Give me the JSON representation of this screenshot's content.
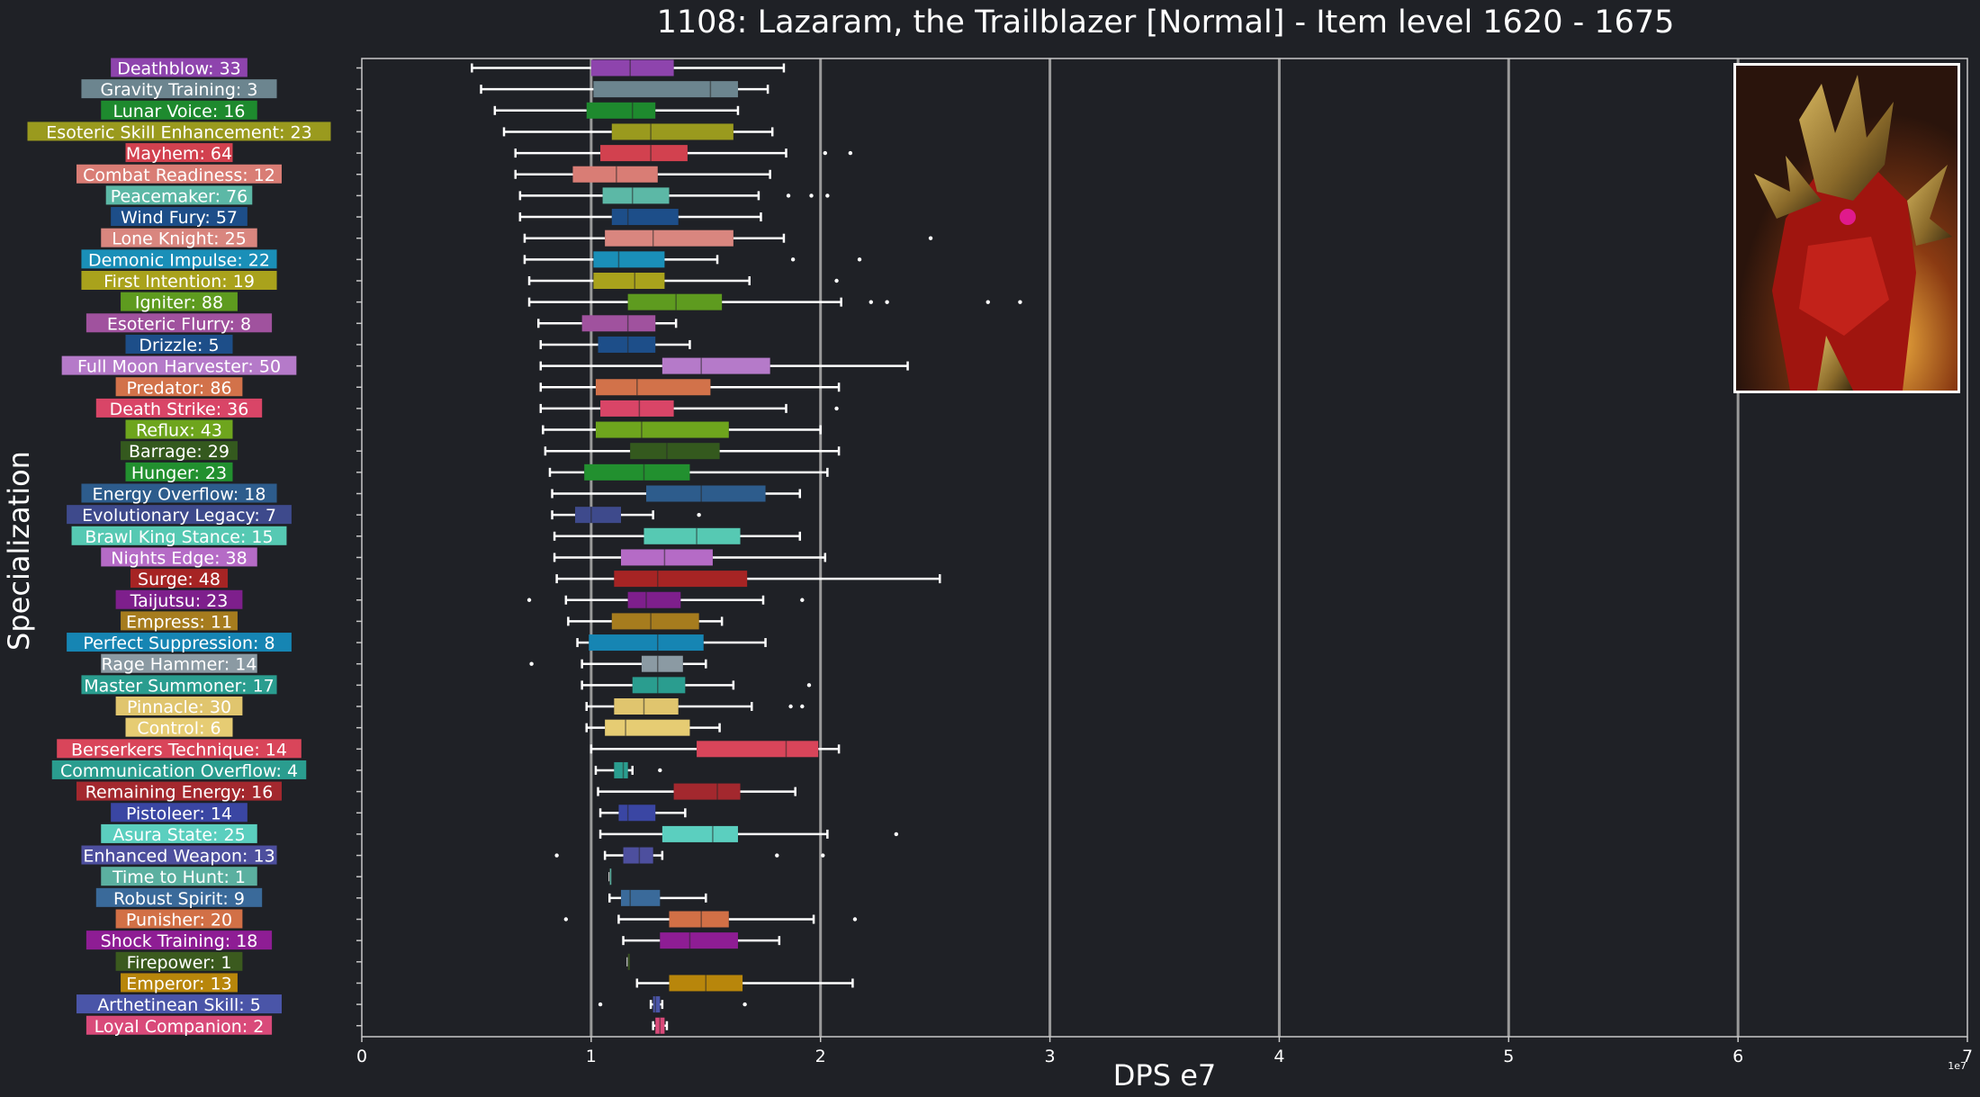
{
  "chart_data": {
    "type": "boxplot",
    "orientation": "horizontal",
    "title": "1108: Lazaram, the Trailblazer [Normal] - Item level 1620 - 1675",
    "xlabel": "DPS e7",
    "ylabel": "Specialization",
    "x_exponent_label": "1e7",
    "xlim": [
      0,
      7
    ],
    "xticks": [
      0,
      1,
      2,
      3,
      4,
      5,
      6,
      7
    ],
    "grid": "vertical major gridlines",
    "series": [
      {
        "label": "Deathblow: 33",
        "color": "#8e44ad",
        "stats": [
          0.48,
          1.0,
          1.17,
          1.36,
          1.84
        ],
        "outliers": []
      },
      {
        "label": "Gravity Training: 3",
        "color": "#6c858f",
        "stats": [
          0.52,
          1.01,
          1.52,
          1.64,
          1.77
        ],
        "outliers": []
      },
      {
        "label": "Lunar Voice: 16",
        "color": "#1e8a2e",
        "stats": [
          0.58,
          0.98,
          1.18,
          1.28,
          1.64
        ],
        "outliers": []
      },
      {
        "label": "Esoteric Skill Enhancement: 23",
        "color": "#9a9a1e",
        "stats": [
          0.62,
          1.09,
          1.26,
          1.62,
          1.79
        ],
        "outliers": []
      },
      {
        "label": "Mayhem: 64",
        "color": "#d2414f",
        "stats": [
          0.67,
          1.04,
          1.26,
          1.42,
          1.85
        ],
        "outliers": [
          2.02,
          2.13
        ]
      },
      {
        "label": "Combat Readiness: 12",
        "color": "#d97d75",
        "stats": [
          0.67,
          0.92,
          1.11,
          1.29,
          1.78
        ],
        "outliers": []
      },
      {
        "label": "Peacemaker: 76",
        "color": "#5cb8a6",
        "stats": [
          0.69,
          1.05,
          1.18,
          1.34,
          1.73
        ],
        "outliers": [
          1.86,
          1.96,
          2.03
        ]
      },
      {
        "label": "Wind Fury: 57",
        "color": "#1d4e89",
        "stats": [
          0.69,
          1.09,
          1.16,
          1.38,
          1.74
        ],
        "outliers": []
      },
      {
        "label": "Lone Knight: 25",
        "color": "#d9867f",
        "stats": [
          0.71,
          1.06,
          1.27,
          1.62,
          1.84
        ],
        "outliers": [
          2.48
        ]
      },
      {
        "label": "Demonic Impulse: 22",
        "color": "#1a8fb8",
        "stats": [
          0.71,
          1.01,
          1.12,
          1.32,
          1.55
        ],
        "outliers": [
          1.88,
          2.17
        ]
      },
      {
        "label": "First Intention: 19",
        "color": "#a9a21c",
        "stats": [
          0.73,
          1.01,
          1.19,
          1.32,
          1.69
        ],
        "outliers": [
          2.07
        ]
      },
      {
        "label": "Igniter: 88",
        "color": "#5e9b1f",
        "stats": [
          0.73,
          1.16,
          1.37,
          1.57,
          2.09
        ],
        "outliers": [
          2.22,
          2.29,
          2.73,
          2.87
        ]
      },
      {
        "label": "Esoteric Flurry: 8",
        "color": "#a0529e",
        "stats": [
          0.77,
          0.96,
          1.16,
          1.28,
          1.37
        ],
        "outliers": []
      },
      {
        "label": "Drizzle: 5",
        "color": "#1d4e89",
        "stats": [
          0.78,
          1.03,
          1.16,
          1.28,
          1.43
        ],
        "outliers": []
      },
      {
        "label": "Full Moon Harvester: 50",
        "color": "#b57ac9",
        "stats": [
          0.78,
          1.31,
          1.48,
          1.78,
          2.38
        ],
        "outliers": []
      },
      {
        "label": "Predator: 86",
        "color": "#d2724a",
        "stats": [
          0.78,
          1.02,
          1.2,
          1.52,
          2.08
        ],
        "outliers": []
      },
      {
        "label": "Death Strike: 36",
        "color": "#d94567",
        "stats": [
          0.78,
          1.04,
          1.21,
          1.36,
          1.85
        ],
        "outliers": [
          2.07
        ]
      },
      {
        "label": "Reflux: 43",
        "color": "#6ea51d",
        "stats": [
          0.79,
          1.02,
          1.22,
          1.6,
          2.0
        ],
        "outliers": []
      },
      {
        "label": "Barrage: 29",
        "color": "#34591e",
        "stats": [
          0.8,
          1.17,
          1.33,
          1.56,
          2.08
        ],
        "outliers": []
      },
      {
        "label": "Hunger: 23",
        "color": "#22902f",
        "stats": [
          0.82,
          0.97,
          1.23,
          1.43,
          2.03
        ],
        "outliers": []
      },
      {
        "label": "Energy Overflow: 18",
        "color": "#2d5c8c",
        "stats": [
          0.83,
          1.24,
          1.48,
          1.76,
          1.91
        ],
        "outliers": []
      },
      {
        "label": "Evolutionary Legacy: 7",
        "color": "#3e4a8c",
        "stats": [
          0.83,
          0.93,
          1.0,
          1.13,
          1.27
        ],
        "outliers": [
          1.47
        ]
      },
      {
        "label": "Brawl King Stance: 15",
        "color": "#56c9b3",
        "stats": [
          0.84,
          1.23,
          1.46,
          1.65,
          1.91
        ],
        "outliers": []
      },
      {
        "label": "Nights Edge: 38",
        "color": "#b56bc6",
        "stats": [
          0.84,
          1.13,
          1.32,
          1.53,
          2.02
        ],
        "outliers": []
      },
      {
        "label": "Surge: 48",
        "color": "#a62424",
        "stats": [
          0.85,
          1.1,
          1.29,
          1.68,
          2.52
        ],
        "outliers": []
      },
      {
        "label": "Taijutsu: 23",
        "color": "#7e1f8c",
        "stats": [
          0.89,
          1.16,
          1.24,
          1.39,
          1.75
        ],
        "outliers": [
          0.73,
          1.92
        ]
      },
      {
        "label": "Empress: 11",
        "color": "#a67c1e",
        "stats": [
          0.9,
          1.09,
          1.26,
          1.47,
          1.57
        ],
        "outliers": []
      },
      {
        "label": "Perfect Suppression: 8",
        "color": "#1685b3",
        "stats": [
          0.94,
          0.99,
          1.29,
          1.49,
          1.76
        ],
        "outliers": []
      },
      {
        "label": "Rage Hammer: 14",
        "color": "#8b9aa3",
        "stats": [
          0.96,
          1.22,
          1.29,
          1.4,
          1.5
        ],
        "outliers": [
          0.74
        ]
      },
      {
        "label": "Master Summoner: 17",
        "color": "#2a9d8f",
        "stats": [
          0.96,
          1.18,
          1.29,
          1.41,
          1.62
        ],
        "outliers": [
          1.95
        ]
      },
      {
        "label": "Pinnacle: 30",
        "color": "#e0c56e",
        "stats": [
          0.98,
          1.1,
          1.23,
          1.38,
          1.7
        ],
        "outliers": [
          1.87,
          1.92
        ]
      },
      {
        "label": "Control: 6",
        "color": "#e6cc73",
        "stats": [
          0.98,
          1.06,
          1.15,
          1.43,
          1.56
        ],
        "outliers": []
      },
      {
        "label": "Berserkers Technique: 14",
        "color": "#d9455a",
        "stats": [
          1.0,
          1.46,
          1.85,
          1.99,
          2.08
        ],
        "outliers": []
      },
      {
        "label": "Communication Overflow: 4",
        "color": "#2a9d8f",
        "stats": [
          1.02,
          1.1,
          1.14,
          1.16,
          1.18
        ],
        "outliers": [
          1.3
        ]
      },
      {
        "label": "Remaining Energy: 16",
        "color": "#a3282e",
        "stats": [
          1.03,
          1.36,
          1.55,
          1.65,
          1.89
        ],
        "outliers": []
      },
      {
        "label": "Pistoleer: 14",
        "color": "#3a46a3",
        "stats": [
          1.04,
          1.12,
          1.16,
          1.28,
          1.41
        ],
        "outliers": []
      },
      {
        "label": "Asura State: 25",
        "color": "#5bcfbf",
        "stats": [
          1.04,
          1.31,
          1.53,
          1.64,
          2.03
        ],
        "outliers": [
          2.33
        ]
      },
      {
        "label": "Enhanced Weapon: 13",
        "color": "#4d4f9e",
        "stats": [
          1.06,
          1.14,
          1.21,
          1.27,
          1.31
        ],
        "outliers": [
          0.85,
          1.81,
          2.01
        ]
      },
      {
        "label": "Time to Hunt: 1",
        "color": "#5bb0a0",
        "stats": [
          1.08,
          1.08,
          1.08,
          1.08,
          1.08
        ],
        "outliers": []
      },
      {
        "label": "Robust Spirit: 9",
        "color": "#3a6a9a",
        "stats": [
          1.08,
          1.13,
          1.17,
          1.3,
          1.5
        ],
        "outliers": []
      },
      {
        "label": "Punisher: 20",
        "color": "#d27046",
        "stats": [
          1.12,
          1.34,
          1.48,
          1.6,
          1.97
        ],
        "outliers": [
          0.89,
          2.15
        ]
      },
      {
        "label": "Shock Training: 18",
        "color": "#8e1d94",
        "stats": [
          1.14,
          1.3,
          1.43,
          1.64,
          1.82
        ],
        "outliers": []
      },
      {
        "label": "Firepower: 1",
        "color": "#3b5a1e",
        "stats": [
          1.16,
          1.16,
          1.16,
          1.16,
          1.16
        ],
        "outliers": []
      },
      {
        "label": "Emperor: 13",
        "color": "#b8860b",
        "stats": [
          1.2,
          1.34,
          1.5,
          1.66,
          2.14
        ],
        "outliers": []
      },
      {
        "label": "Arthetinean Skill: 5",
        "color": "#4a55a8",
        "stats": [
          1.26,
          1.27,
          1.28,
          1.3,
          1.31
        ],
        "outliers": [
          1.04,
          1.67
        ]
      },
      {
        "label": "Loyal Companion: 2",
        "color": "#d94a7a",
        "stats": [
          1.27,
          1.28,
          1.3,
          1.32,
          1.33
        ],
        "outliers": []
      }
    ]
  },
  "colors": {
    "background": "#1f2126",
    "text": "#ffffff",
    "gridline": "#9a9a9a"
  },
  "image": {
    "icon": "boss-portrait-image"
  }
}
